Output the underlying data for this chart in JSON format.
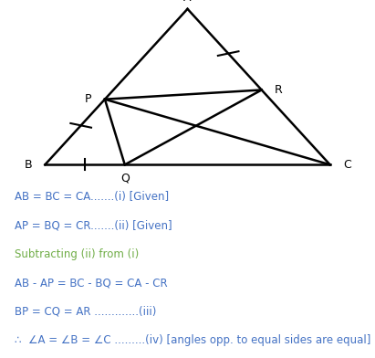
{
  "bg_color": "#ffffff",
  "tc": "#000000",
  "blue": "#4472C4",
  "green": "#70AD47",
  "figsize": [
    4.11,
    3.92
  ],
  "dpi": 100,
  "t_p": 0.42,
  "t_q": 0.28,
  "t_r": 0.52,
  "lw": 1.8,
  "fs_label": 9,
  "fs_text": 8.5,
  "lines": [
    {
      "label": "AB = BC = CA.......(i) [Given]",
      "color": "#4472C4"
    },
    {
      "label": "AP = BQ = CR.......(ii) [Given]",
      "color": "#4472C4"
    },
    {
      "label": "Subtracting (ii) from (i)",
      "color": "#70AD47"
    },
    {
      "label": "AB - AP = BC - BQ = CA - CR",
      "color": "#4472C4"
    },
    {
      "label": "BP = CQ = AR .............(iii)",
      "color": "#4472C4"
    },
    {
      "label": "∴  ∠A = ∠B = ∠C .........(iv) [angles opp. to equal sides are equal]",
      "color": "#4472C4"
    }
  ]
}
